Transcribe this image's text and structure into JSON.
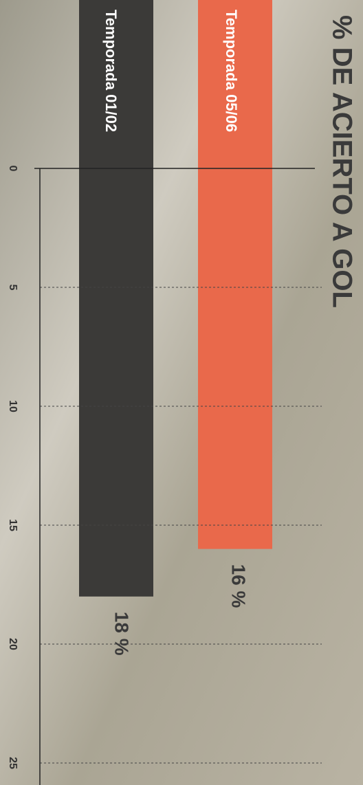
{
  "chart_data": {
    "type": "bar",
    "title": "% DE ACIERTO A GOL",
    "categories": [
      "Temporada 05/06",
      "Temporada 01/02"
    ],
    "values": [
      16,
      18
    ],
    "value_labels": [
      "16 %",
      "18 %"
    ],
    "colors": [
      "#e9694b",
      "#3b3a38"
    ],
    "xlim": [
      0,
      25
    ],
    "xticks": [
      0,
      5,
      10,
      15,
      20,
      25
    ],
    "grid": true
  }
}
